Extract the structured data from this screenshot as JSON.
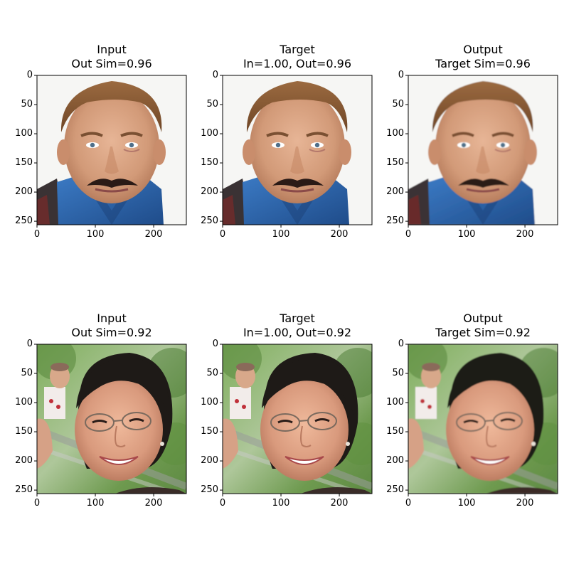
{
  "panels": [
    {
      "id": "r1c1",
      "title_line1": "Input",
      "title_line2": "Out Sim=0.96",
      "image": "middle-aged man portrait with mustache, blue shirt, white background"
    },
    {
      "id": "r1c2",
      "title_line1": "Target",
      "title_line2": "In=1.00, Out=0.96",
      "image": "same man portrait"
    },
    {
      "id": "r1c3",
      "title_line1": "Output",
      "title_line2": "Target Sim=0.96",
      "image": "same man portrait, slightly smoothed"
    },
    {
      "id": "r2c1",
      "title_line1": "Input",
      "title_line2": "Out Sim=0.92",
      "image": "smiling woman with glasses, outdoor green background"
    },
    {
      "id": "r2c2",
      "title_line1": "Target",
      "title_line2": "In=1.00, Out=0.92",
      "image": "same woman portrait"
    },
    {
      "id": "r2c3",
      "title_line1": "Output",
      "title_line2": "Target Sim=0.92",
      "image": "same woman portrait, slightly smoothed"
    }
  ],
  "axes": {
    "y_ticks": [
      "0",
      "50",
      "100",
      "150",
      "200",
      "250"
    ],
    "x_ticks": [
      "0",
      "100",
      "200"
    ],
    "y_values": [
      0,
      50,
      100,
      150,
      200,
      250
    ],
    "x_values": [
      0,
      100,
      200
    ],
    "range": [
      0,
      256
    ]
  },
  "colors": {
    "bg_light": "#f4f4f4",
    "skin": "#d9a484",
    "hair_man": "#8a5a35",
    "shirt_blue": "#2d63a8",
    "green_bg": "#6e9a4f",
    "hair_woman": "#1e1a17"
  }
}
